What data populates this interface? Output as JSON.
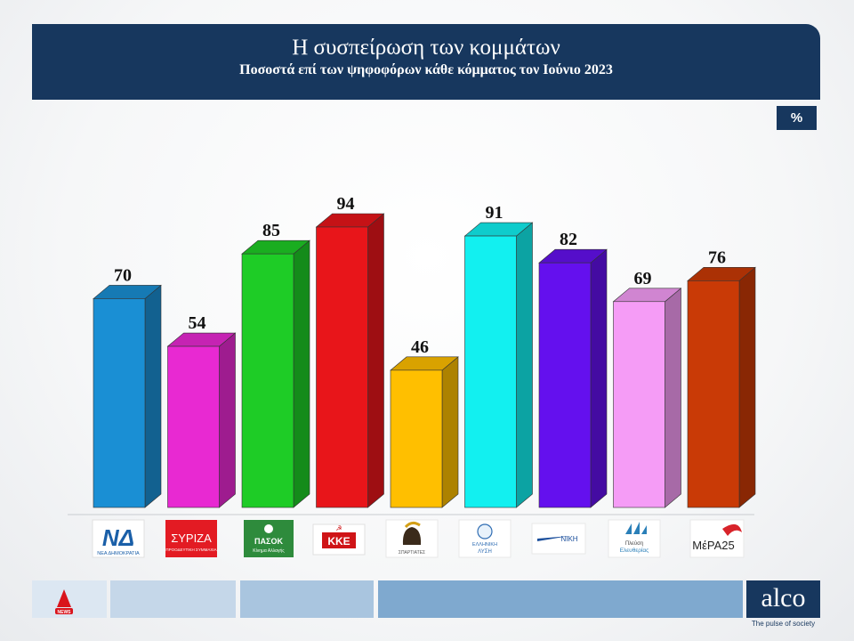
{
  "header": {
    "title": "Η συσπείρωση των κομμάτων",
    "subtitle": "Ποσοστά επί των ψηφοφόρων κάθε κόμματος τον Ιούνιο 2023"
  },
  "unit": "%",
  "chart_data": {
    "type": "bar",
    "title": "Η συσπείρωση των κομμάτων",
    "subtitle": "Ποσοστά επί των ψηφοφόρων κάθε κόμματος τον Ιούνιο 2023",
    "categories": [
      "ΝΔ",
      "ΣΥΡΙΖΑ",
      "ΠΑΣΟΚ",
      "ΚΚΕ",
      "Σπαρτιάτες",
      "Ελληνική Λύση",
      "ΝΙΚΗ",
      "Πλεύση Ελευθερίας",
      "ΜέΡΑ25"
    ],
    "values": [
      70,
      54,
      85,
      94,
      46,
      91,
      82,
      69,
      76
    ],
    "colors": [
      "#1a8fd4",
      "#e829d2",
      "#1ecc26",
      "#e8151a",
      "#ffbf00",
      "#12f0f0",
      "#6410ee",
      "#f59cf6",
      "#c93a06"
    ],
    "ylim": [
      0,
      100
    ],
    "unit": "%",
    "data_labels": true,
    "legend": "none"
  },
  "logos": {
    "nd_mark": "ΝΔ",
    "nd_text": "ΝΕΑ ΔΗΜΟΚΡΑΤΙΑ",
    "syriza_mark": "ΣΥΡΙΖΑ",
    "syriza_text": "ΠΡΟΟΔΕΥΤΙΚΗ ΣΥΜΜΑΧΙΑ",
    "pasok_mark": "ΠΑΣΟΚ",
    "pasok_text": "Κίνημα Αλλαγής",
    "kke_mark": "ΚΚΕ",
    "spartiates_text": "ΣΠΑΡΤΙΑΤΕΣ",
    "elliniki_text1": "ΕΛΛΗΝΙΚΗ",
    "elliniki_text2": "ΛΥΣΗ",
    "niki_text": "ΝΙΚΗ",
    "plefsi_text1": "Πλεύση",
    "plefsi_text2": "Ελευθερίας",
    "mera_mark": "ΜέΡΑ25"
  },
  "footer": {
    "news_mark": "NEWS",
    "brand": "alco",
    "tagline": "The pulse of society"
  }
}
